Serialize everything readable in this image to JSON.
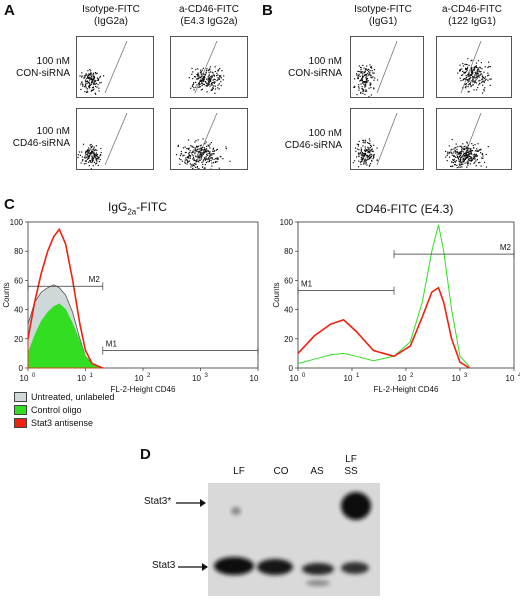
{
  "panel_a": {
    "letter": "A",
    "columns": [
      "Isotype-FITC\n(IgG2a)",
      "a-CD46-FITC\n(E4.3 IgG2a)"
    ],
    "rows": [
      "100 nM\nCON-siRNA",
      "100 nM\nCD46-siRNA"
    ]
  },
  "panel_b": {
    "letter": "B",
    "columns": [
      "Isotype-FITC\n(IgG1)",
      "a-CD46-FITC\n(122 IgG1)"
    ],
    "rows": [
      "100 nM\nCON-siRNA",
      "100 nM\nCD46-siRNA"
    ]
  },
  "panel_c": {
    "letter": "C",
    "left_title_main": "IgG",
    "left_title_sub": "2a",
    "left_title_rest": "-FITC",
    "right_title": "CD46-FITC (E4.3)",
    "xlabel": "FL-2-Height CD46",
    "ylabel": "Counts",
    "x_ticks": [
      "10",
      "10",
      "10",
      "10",
      "10"
    ],
    "x_tick_exps": [
      "0",
      "1",
      "2",
      "3",
      "4"
    ],
    "left_y_ticks": [
      "0",
      "20",
      "40",
      "60",
      "80",
      "100"
    ],
    "right_y_ticks": [
      "0",
      "20",
      "40",
      "60",
      "80",
      "100"
    ],
    "left_gates": [
      "M1",
      "M2"
    ],
    "right_gates": [
      "M1",
      "M2"
    ],
    "legend": [
      {
        "label": "Untreated, unlabeled",
        "color": "#cfd8d8"
      },
      {
        "label": "Control oligo",
        "color": "#33dd22"
      },
      {
        "label": "Stat3 antisense",
        "color": "#ee2211"
      }
    ]
  },
  "panel_d": {
    "letter": "D",
    "lanes": [
      "LF",
      "CO",
      "AS",
      "LF\nSS"
    ],
    "band_labels": [
      "Stat3*",
      "Stat3"
    ]
  },
  "chart_data": [
    {
      "type": "area",
      "title": "IgG2a-FITC",
      "xlabel": "FL-2-Height CD46",
      "ylabel": "Counts",
      "x_scale": "log",
      "xlim": [
        1,
        10000
      ],
      "ylim": [
        0,
        100
      ],
      "series": [
        {
          "name": "Untreated, unlabeled",
          "x": [
            1,
            1.3,
            1.7,
            2.2,
            2.8,
            3.5,
            4.5,
            6,
            8,
            10,
            13,
            20
          ],
          "y": [
            30,
            45,
            52,
            55,
            57,
            55,
            50,
            38,
            20,
            8,
            3,
            0
          ]
        },
        {
          "name": "Control oligo",
          "x": [
            1,
            1.3,
            1.7,
            2.2,
            2.8,
            3.5,
            4.5,
            6,
            8,
            10,
            13,
            20
          ],
          "y": [
            10,
            22,
            32,
            38,
            42,
            44,
            40,
            30,
            18,
            8,
            2,
            0
          ]
        },
        {
          "name": "Stat3 antisense",
          "x": [
            1,
            1.3,
            1.7,
            2.2,
            2.8,
            3.5,
            4.5,
            6,
            8,
            10,
            13,
            20
          ],
          "y": [
            20,
            45,
            65,
            80,
            90,
            95,
            85,
            60,
            30,
            12,
            3,
            0
          ]
        }
      ]
    },
    {
      "type": "line",
      "title": "CD46-FITC (E4.3)",
      "xlabel": "FL-2-Height CD46",
      "ylabel": "Counts",
      "x_scale": "log",
      "xlim": [
        1,
        10000
      ],
      "ylim": [
        0,
        100
      ],
      "series": [
        {
          "name": "Control oligo",
          "x": [
            1,
            2,
            4,
            7,
            12,
            25,
            60,
            120,
            200,
            300,
            400,
            500,
            700,
            1000,
            1500
          ],
          "y": [
            3,
            6,
            9,
            10,
            8,
            5,
            8,
            18,
            45,
            80,
            98,
            80,
            40,
            8,
            1
          ]
        },
        {
          "name": "Stat3 antisense",
          "x": [
            1,
            2,
            4,
            7,
            12,
            25,
            60,
            120,
            200,
            300,
            400,
            500,
            700,
            1000,
            1500
          ],
          "y": [
            10,
            22,
            30,
            33,
            25,
            12,
            8,
            15,
            35,
            52,
            55,
            45,
            20,
            4,
            0
          ]
        }
      ]
    }
  ]
}
